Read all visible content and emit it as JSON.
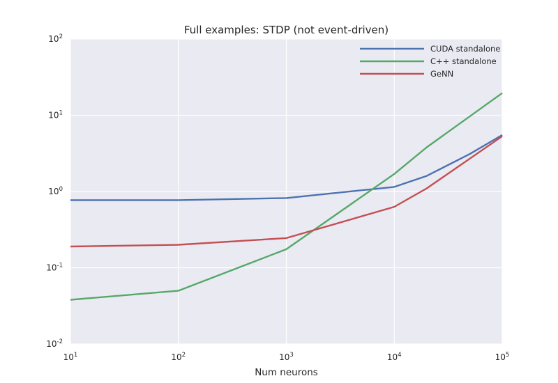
{
  "chart_data": {
    "type": "line",
    "title": "Full examples: STDP (not event-driven)",
    "xlabel": "Num neurons",
    "ylabel": "",
    "xscale": "log",
    "yscale": "log",
    "xlim": [
      10,
      100000
    ],
    "ylim": [
      0.01,
      100
    ],
    "grid": true,
    "legend": "top-right",
    "x_ticks": [
      {
        "base": "10",
        "exp": "1",
        "value": 10
      },
      {
        "base": "10",
        "exp": "2",
        "value": 100
      },
      {
        "base": "10",
        "exp": "3",
        "value": 1000
      },
      {
        "base": "10",
        "exp": "4",
        "value": 10000
      },
      {
        "base": "10",
        "exp": "5",
        "value": 100000
      }
    ],
    "y_ticks": [
      {
        "base": "10",
        "exp": "-2",
        "value": 0.01
      },
      {
        "base": "10",
        "exp": "-1",
        "value": 0.1
      },
      {
        "base": "10",
        "exp": "0",
        "value": 1
      },
      {
        "base": "10",
        "exp": "1",
        "value": 10
      },
      {
        "base": "10",
        "exp": "2",
        "value": 100
      }
    ],
    "series": [
      {
        "name": "CUDA standalone",
        "color": "#4c72b0",
        "x": [
          10,
          100,
          1000,
          10000,
          20000,
          50000,
          100000
        ],
        "y": [
          0.77,
          0.77,
          0.82,
          1.15,
          1.6,
          3.1,
          5.5
        ]
      },
      {
        "name": "C++ standalone",
        "color": "#55a868",
        "x": [
          10,
          100,
          1000,
          10000,
          20000,
          100000
        ],
        "y": [
          0.038,
          0.05,
          0.175,
          1.7,
          3.8,
          19.5
        ]
      },
      {
        "name": "GeNN",
        "color": "#c44e52",
        "x": [
          10,
          100,
          1000,
          10000,
          20000,
          100000
        ],
        "y": [
          0.19,
          0.2,
          0.245,
          0.63,
          1.1,
          5.3
        ]
      }
    ]
  }
}
